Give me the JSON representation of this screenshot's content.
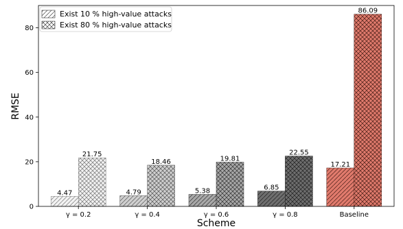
{
  "chart_data": {
    "type": "bar",
    "categories": [
      "γ = 0.2",
      "γ = 0.4",
      "γ = 0.6",
      "γ = 0.8",
      "Baseline"
    ],
    "series": [
      {
        "name": "Exist 10 % high-value attacks",
        "values": [
          4.47,
          4.79,
          5.38,
          6.85,
          17.21
        ],
        "labels": [
          "4.47",
          "4.79",
          "5.38",
          "6.85",
          "17.21"
        ],
        "hatch": "diagonal"
      },
      {
        "name": "Exist 80 % high-value attacks",
        "values": [
          21.75,
          18.46,
          19.81,
          22.55,
          86.09
        ],
        "labels": [
          "21.75",
          "18.46",
          "19.81",
          "22.55",
          "86.09"
        ],
        "hatch": "crosshatch"
      }
    ],
    "bar_colors": [
      "#f2f2f2",
      "#cfcfcf",
      "#a8a8a8",
      "#6e6e6e",
      "#e07a6c"
    ],
    "hatch_colors": [
      "#777777",
      "#555555",
      "#333333",
      "#222222",
      "#4a1f18"
    ],
    "xlabel": "Scheme",
    "ylabel": "RMSE",
    "ylim": [
      0,
      90
    ],
    "yticks": [
      0,
      20,
      40,
      60,
      80
    ],
    "grid": false,
    "legend_position": "top-left"
  }
}
